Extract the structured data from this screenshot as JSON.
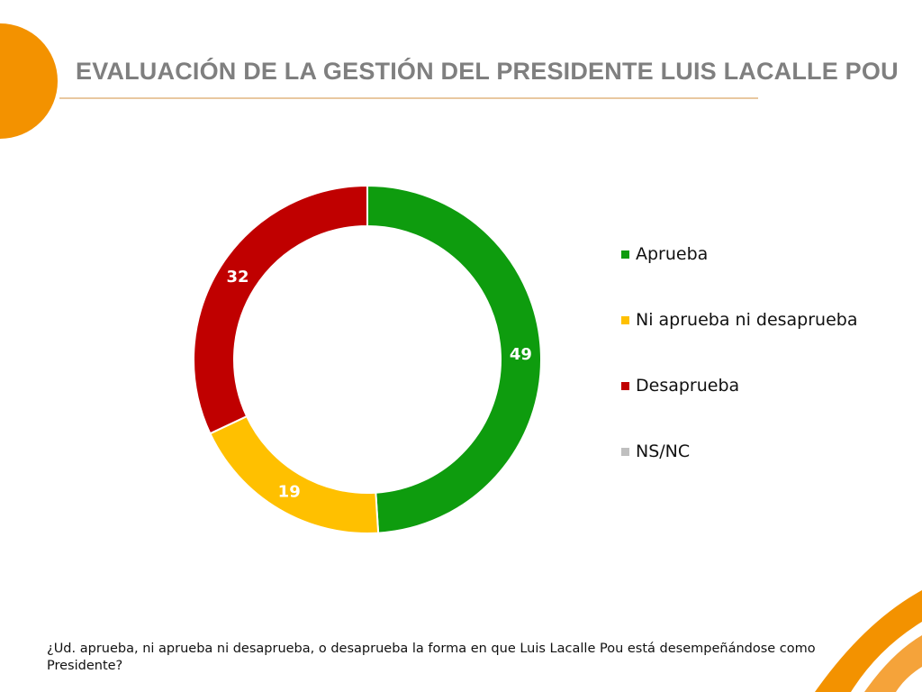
{
  "title": "EVALUACIÓN DE LA GESTIÓN DEL PRESIDENTE LUIS LACALLE POU",
  "question": "¿Ud. aprueba, ni aprueba ni desaprueba, o desaprueba la forma en que Luis Lacalle Pou está desempeñándose como Presidente?",
  "colors": {
    "title": "#7f7f7f",
    "accent": "#f39200",
    "rule": "#e8c8a0"
  },
  "chart_data": {
    "type": "pie",
    "style": "donut",
    "title": "EVALUACIÓN DE LA GESTIÓN DEL PRESIDENTE LUIS LACALLE POU",
    "legend_position": "right",
    "categories": [
      "Aprueba",
      "Ni aprueba ni desaprueba",
      "Desaprueba",
      "NS/NC"
    ],
    "values": [
      49,
      19,
      32,
      0
    ],
    "colors": [
      "#0e9c0e",
      "#ffc000",
      "#c00000",
      "#bfbfbf"
    ],
    "label_color": "#ffffff"
  }
}
